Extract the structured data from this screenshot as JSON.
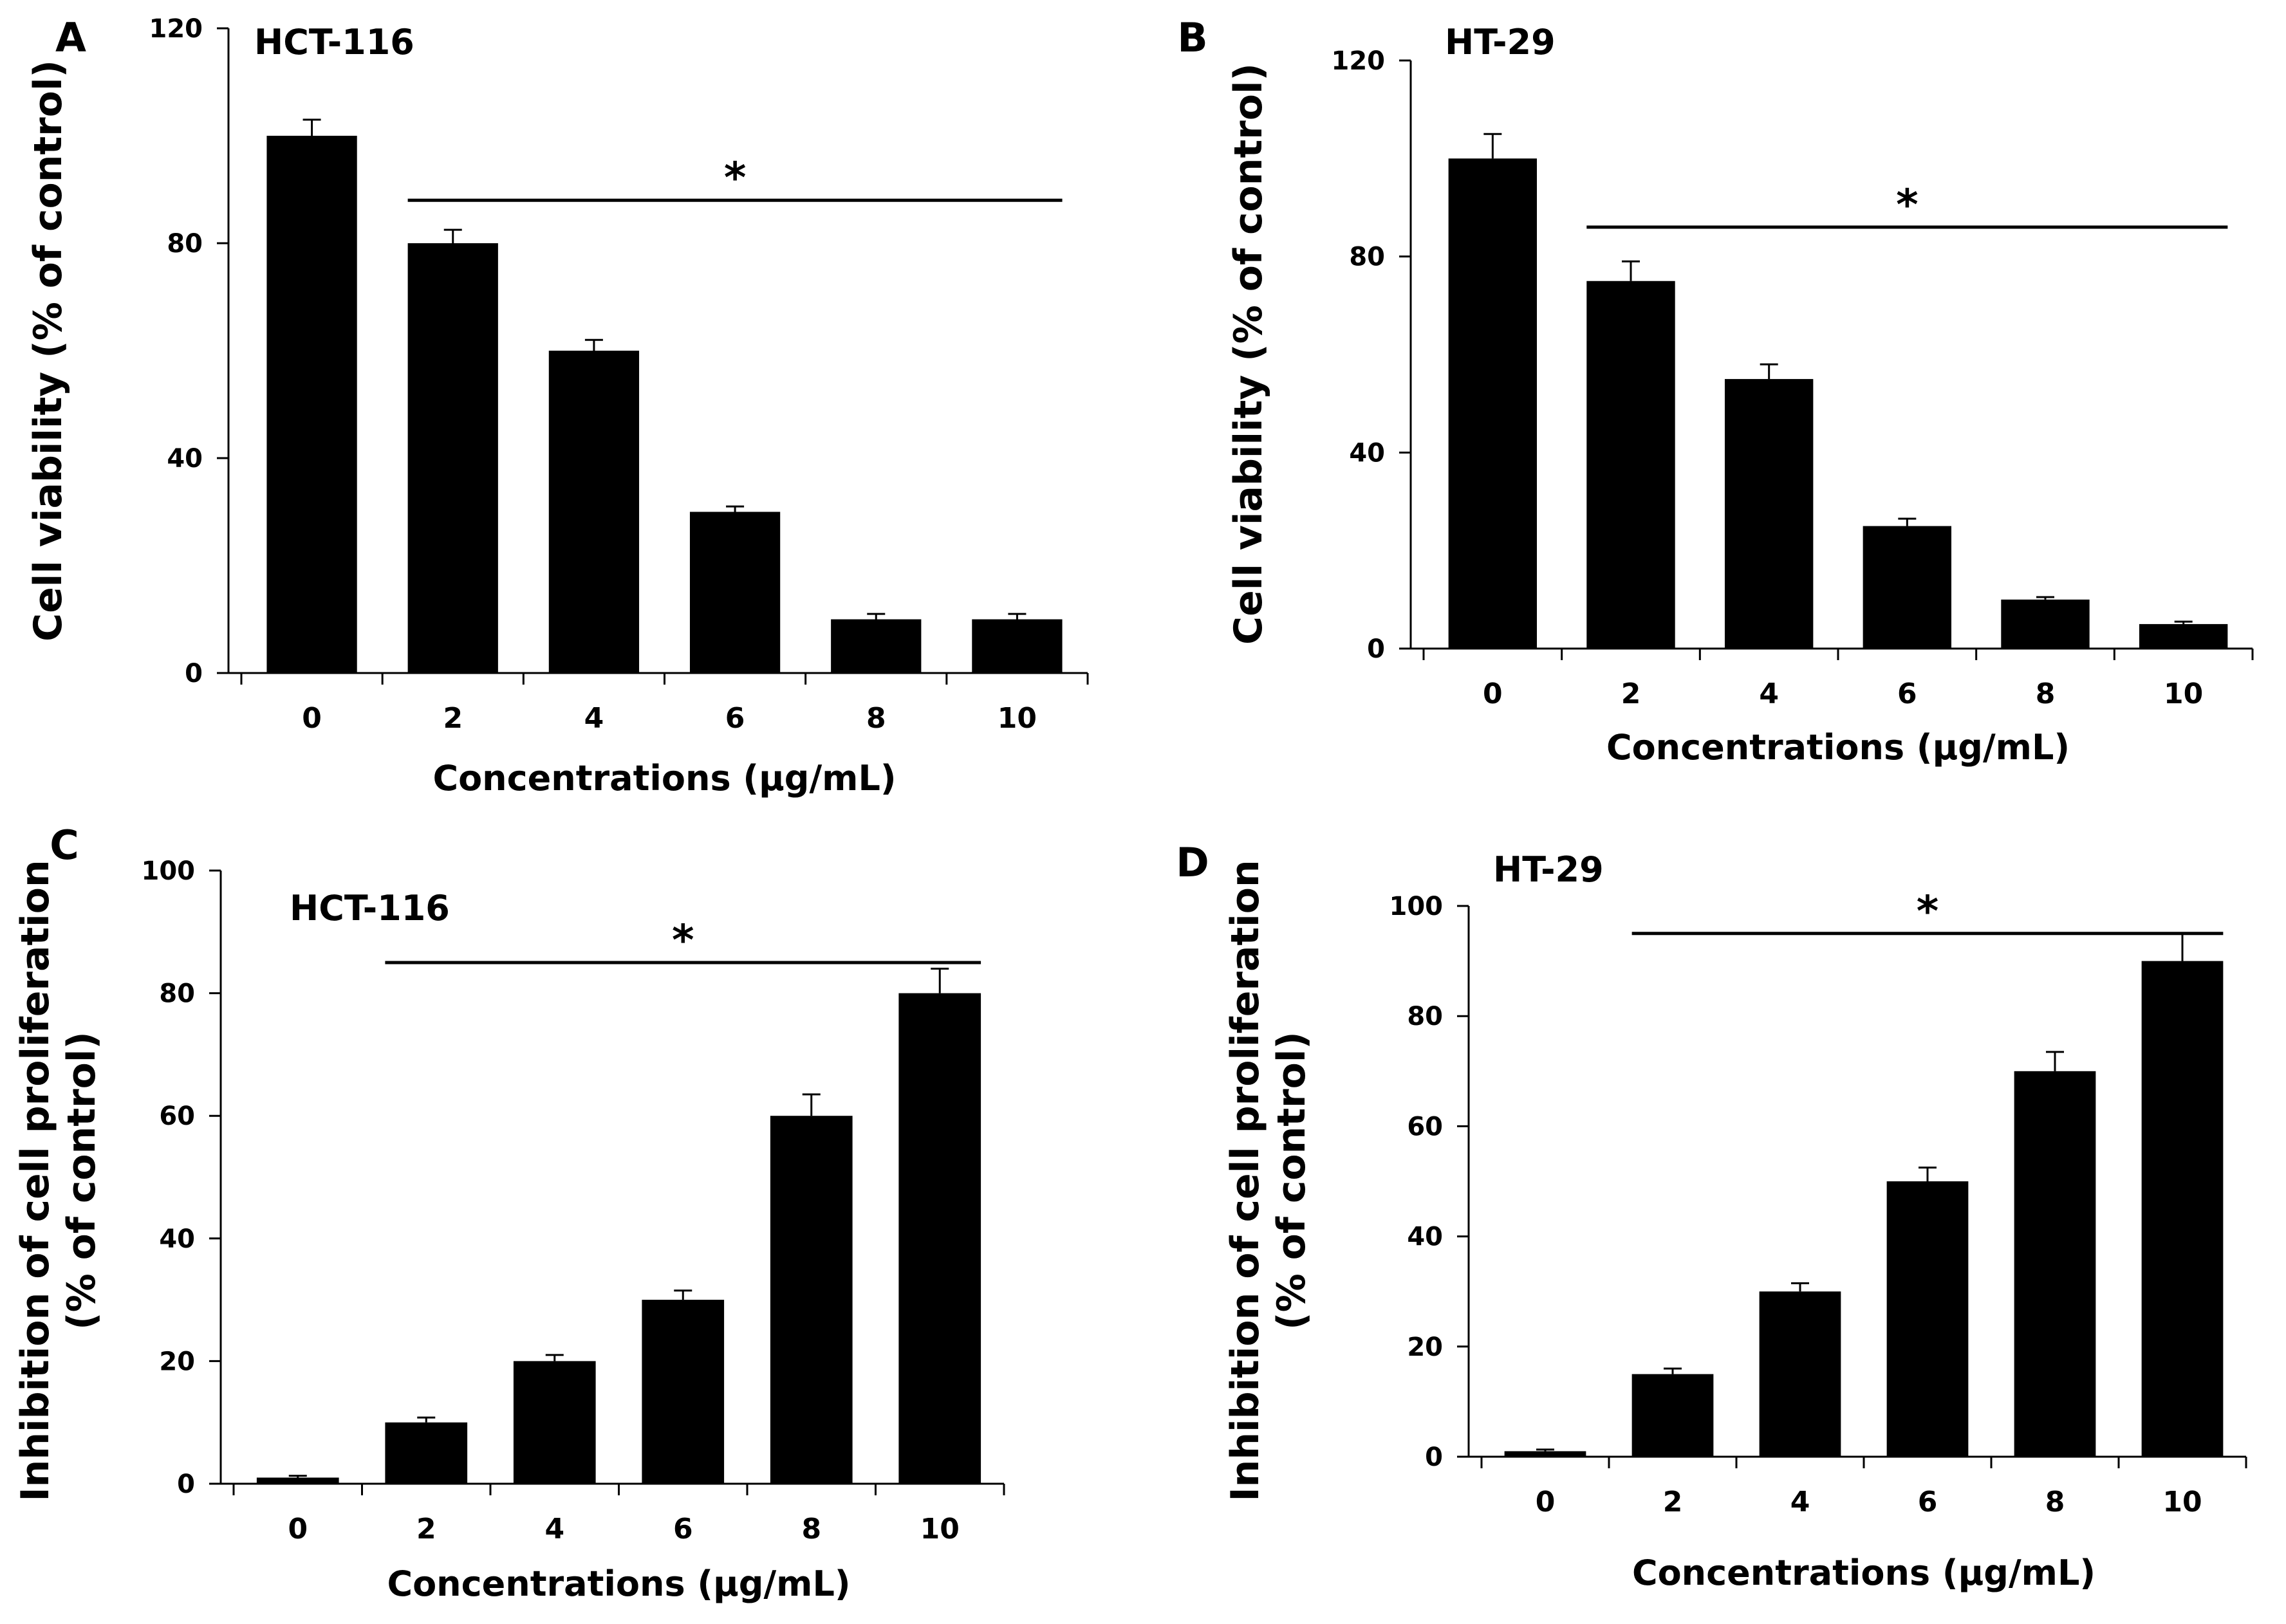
{
  "chart_data": [
    {
      "panel": "A",
      "type": "bar",
      "title": "HCT-116",
      "categories": [
        "0",
        "2",
        "4",
        "6",
        "8",
        "10"
      ],
      "values": [
        100,
        80,
        60,
        30,
        10,
        10
      ],
      "errors": [
        3,
        2.5,
        2,
        1,
        1,
        1
      ],
      "ylim": [
        0,
        120
      ],
      "yticks": [
        "0",
        "40",
        "80",
        "120"
      ],
      "ylabel_lines": [
        "Cell viability (% of control)"
      ],
      "xlabel": "Concentrations (µg/mL)",
      "significance": {
        "symbol": "*",
        "from": "2",
        "to": "10",
        "level": 88
      }
    },
    {
      "panel": "B",
      "type": "bar",
      "title": "HT-29",
      "categories": [
        "0",
        "2",
        "4",
        "6",
        "8",
        "10"
      ],
      "values": [
        100,
        75,
        55,
        25,
        10,
        5
      ],
      "errors": [
        5,
        4,
        3,
        1.5,
        0.5,
        0.5
      ],
      "ylim": [
        0,
        120
      ],
      "yticks": [
        "0",
        "40",
        "80",
        "120"
      ],
      "ylabel_lines": [
        "Cell viability (% of control)"
      ],
      "xlabel": "Concentrations (µg/mL)",
      "significance": {
        "symbol": "*",
        "from": "2",
        "to": "10",
        "level": 86
      }
    },
    {
      "panel": "C",
      "type": "bar",
      "title": "HCT-116",
      "categories": [
        "0",
        "2",
        "4",
        "6",
        "8",
        "10"
      ],
      "values": [
        1,
        10,
        20,
        30,
        60,
        80
      ],
      "errors": [
        0.3,
        0.8,
        1,
        1.5,
        3.5,
        4
      ],
      "ylim": [
        0,
        100
      ],
      "yticks": [
        "0",
        "20",
        "40",
        "60",
        "80",
        "100"
      ],
      "ylabel_lines": [
        "Inhibition of cell proliferation",
        "(% of control)"
      ],
      "xlabel": "Concentrations (µg/mL)",
      "significance": {
        "symbol": "*",
        "from": "2",
        "to": "10",
        "level": 85
      }
    },
    {
      "panel": "D",
      "type": "bar",
      "title": "HT-29",
      "categories": [
        "0",
        "2",
        "4",
        "6",
        "8",
        "10"
      ],
      "values": [
        1,
        15,
        30,
        50,
        70,
        90
      ],
      "errors": [
        0.3,
        1,
        1.5,
        2.5,
        3.5,
        5
      ],
      "ylim": [
        0,
        100
      ],
      "yticks": [
        "0",
        "20",
        "40",
        "60",
        "80",
        "100"
      ],
      "ylabel_lines": [
        "Inhibition of cell proliferation",
        "(% of control)"
      ],
      "xlabel": "Concentrations (µg/mL)",
      "significance": {
        "symbol": "*",
        "from": "2",
        "to": "10",
        "level": 95
      }
    }
  ]
}
